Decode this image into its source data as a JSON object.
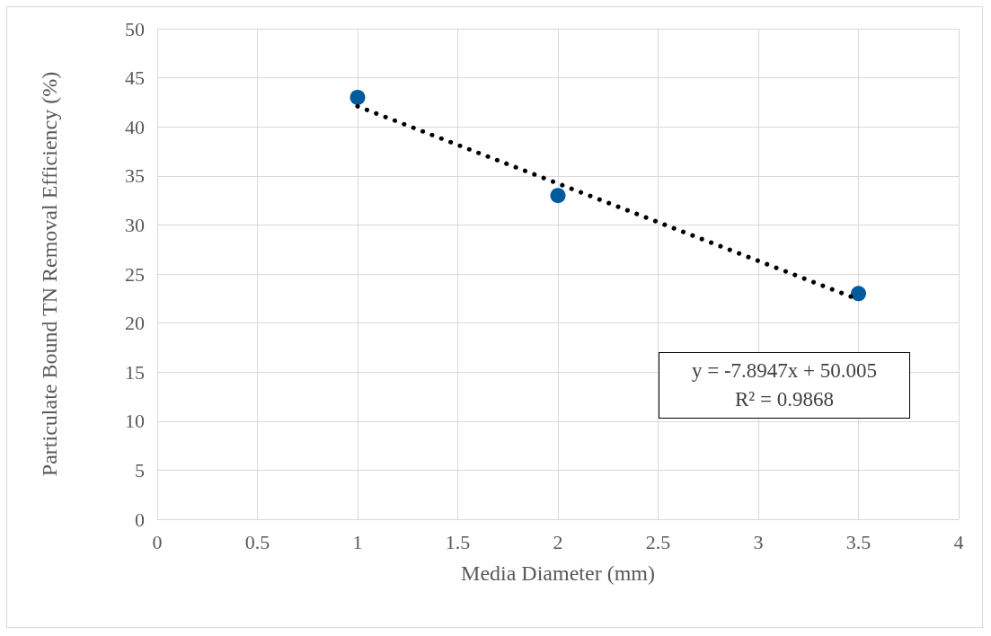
{
  "chart_data": {
    "type": "scatter",
    "xlabel": "Media Diameter (mm)",
    "ylabel": "Particulate Bound TN Removal Efficiency (%)",
    "series": [
      {
        "x": [
          1,
          2,
          3.5
        ],
        "values": [
          43,
          33,
          23
        ],
        "color": "#005a9e",
        "marker": "circle"
      },
      {
        "type": "line",
        "x": [
          1,
          3.5
        ],
        "values": [
          42.1,
          22.4
        ],
        "color": "#000000",
        "marker": "none",
        "line_style": "dotted"
      }
    ],
    "annotations": [
      "y = -7.8947x + 50.005",
      "R² = 0.9868"
    ],
    "xlim": [
      0,
      4
    ],
    "xticks": [
      0,
      0.5,
      1,
      1.5,
      2,
      2.5,
      3,
      3.5,
      4
    ],
    "ylim": [
      0,
      50
    ],
    "yticks": [
      0,
      5,
      10,
      15,
      20,
      25,
      30,
      35,
      40,
      45,
      50
    ],
    "grid": true
  }
}
